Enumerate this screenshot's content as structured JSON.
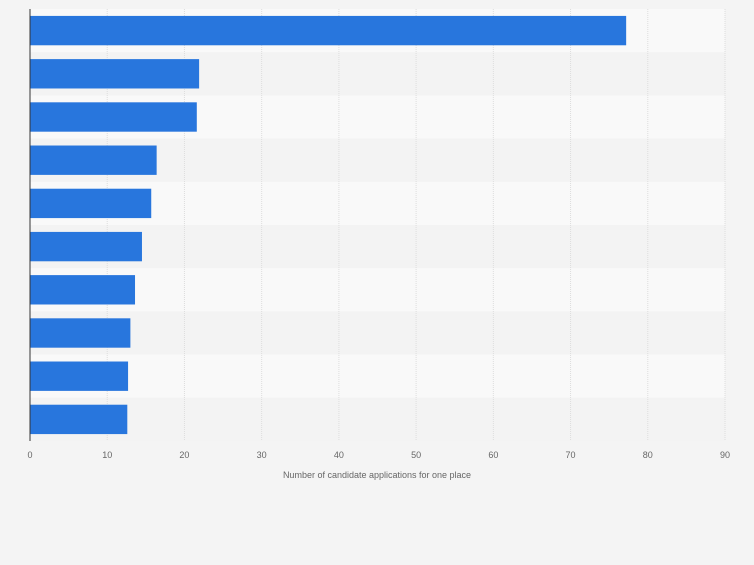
{
  "chart_data": {
    "type": "bar",
    "orientation": "horizontal",
    "categories": [
      "",
      "",
      "",
      "",
      "",
      "",
      "",
      "",
      "",
      ""
    ],
    "values": [
      77.2,
      21.9,
      21.6,
      16.4,
      15.7,
      14.5,
      13.6,
      13.0,
      12.7,
      12.6
    ],
    "xlabel": "Number of candidate applications for one place",
    "ylabel": "",
    "xlim": [
      0,
      90
    ],
    "xticks": [
      0,
      10,
      20,
      30,
      40,
      50,
      60,
      70,
      80,
      90
    ],
    "grid": true,
    "legend": "none",
    "colors": {
      "bar": "#2876dd",
      "band_light": "#f9f9f9",
      "band_dark": "#f3f3f3",
      "grid": "#dddddd",
      "axis": "#333333",
      "tick_text": "#666666"
    }
  }
}
